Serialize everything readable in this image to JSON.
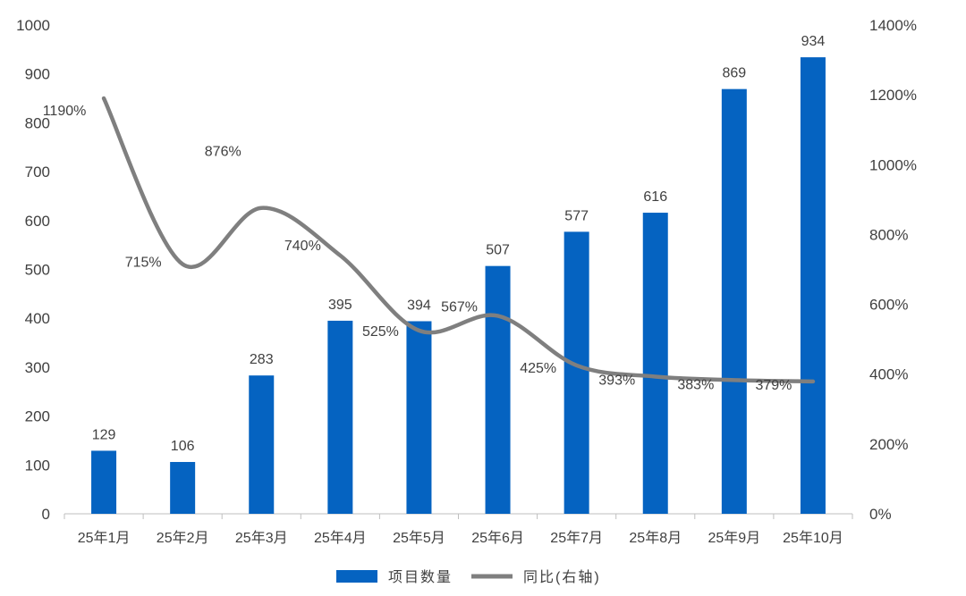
{
  "chart_data": {
    "type": "bar",
    "categories": [
      "25年1月",
      "25年2月",
      "25年3月",
      "25年4月",
      "25年5月",
      "25年6月",
      "25年7月",
      "25年8月",
      "25年9月",
      "25年10月"
    ],
    "series": [
      {
        "name": "项目数量",
        "type": "bar",
        "axis": "left",
        "color": "#0563C1",
        "values": [
          129,
          106,
          283,
          395,
          394,
          507,
          577,
          616,
          869,
          934
        ],
        "labels": [
          "129",
          "106",
          "283",
          "395",
          "394",
          "507",
          "577",
          "616",
          "869",
          "934"
        ]
      },
      {
        "name": "同比(右轴)",
        "type": "line",
        "axis": "right",
        "color": "#7F7F7F",
        "values": [
          1190,
          715,
          876,
          740,
          525,
          567,
          425,
          393,
          383,
          379
        ],
        "labels": [
          "1190%",
          "715%",
          "876%",
          "740%",
          "525%",
          "567%",
          "425%",
          "393%",
          "383%",
          "379%"
        ]
      }
    ],
    "left_axis": {
      "ylim": [
        0,
        1000
      ],
      "ticks": [
        0,
        100,
        200,
        300,
        400,
        500,
        600,
        700,
        800,
        900,
        1000
      ],
      "tick_labels": [
        "0",
        "100",
        "200",
        "300",
        "400",
        "500",
        "600",
        "700",
        "800",
        "900",
        "1000"
      ]
    },
    "right_axis": {
      "ylim": [
        0,
        1400
      ],
      "ticks": [
        0,
        200,
        400,
        600,
        800,
        1000,
        1200,
        1400
      ],
      "tick_labels": [
        "0%",
        "200%",
        "400%",
        "600%",
        "800%",
        "1000%",
        "1200%",
        "1400%"
      ]
    },
    "title": "",
    "xlabel": "",
    "ylabel": "",
    "grid": false,
    "legend": {
      "position": "bottom",
      "items": [
        {
          "label": "项目数量",
          "color": "#0563C1",
          "kind": "bar"
        },
        {
          "label": "同比(右轴)",
          "color": "#7F7F7F",
          "kind": "line"
        }
      ]
    }
  }
}
